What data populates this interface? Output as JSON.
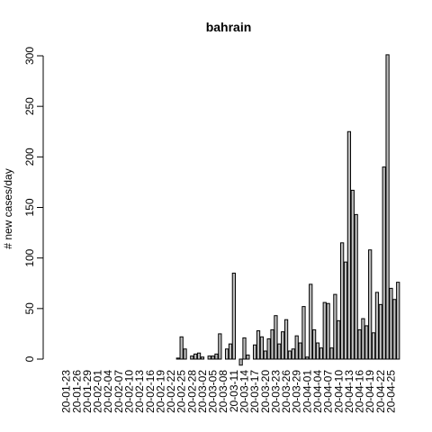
{
  "chart_data": {
    "type": "bar",
    "title": "bahrain",
    "xlabel": "",
    "ylabel": "# new cases/day",
    "ylim": [
      0,
      300
    ],
    "yticks": [
      0,
      50,
      100,
      150,
      200,
      250,
      300
    ],
    "xtick_labels": [
      "20-01-23",
      "20-01-26",
      "20-01-29",
      "20-02-01",
      "20-02-04",
      "20-02-07",
      "20-02-10",
      "20-02-13",
      "20-02-16",
      "20-02-19",
      "20-02-22",
      "20-02-25",
      "20-02-28",
      "20-03-02",
      "20-03-05",
      "20-03-08",
      "20-03-11",
      "20-03-14",
      "20-03-17",
      "20-03-20",
      "20-03-23",
      "20-03-26",
      "20-03-29",
      "20-04-01",
      "20-04-04",
      "20-04-07",
      "20-04-10",
      "20-04-13",
      "20-04-16",
      "20-04-19",
      "20-04-22",
      "20-04-25"
    ],
    "tick_every": 3,
    "categories": [
      "20-01-23",
      "20-01-24",
      "20-01-25",
      "20-01-26",
      "20-01-27",
      "20-01-28",
      "20-01-29",
      "20-01-30",
      "20-01-31",
      "20-02-01",
      "20-02-02",
      "20-02-03",
      "20-02-04",
      "20-02-05",
      "20-02-06",
      "20-02-07",
      "20-02-08",
      "20-02-09",
      "20-02-10",
      "20-02-11",
      "20-02-12",
      "20-02-13",
      "20-02-14",
      "20-02-15",
      "20-02-16",
      "20-02-17",
      "20-02-18",
      "20-02-19",
      "20-02-20",
      "20-02-21",
      "20-02-22",
      "20-02-23",
      "20-02-24",
      "20-02-25",
      "20-02-26",
      "20-02-27",
      "20-02-28",
      "20-02-29",
      "20-03-01",
      "20-03-02",
      "20-03-03",
      "20-03-04",
      "20-03-05",
      "20-03-06",
      "20-03-07",
      "20-03-08",
      "20-03-09",
      "20-03-10",
      "20-03-11",
      "20-03-12",
      "20-03-13",
      "20-03-14",
      "20-03-15",
      "20-03-16",
      "20-03-17",
      "20-03-18",
      "20-03-19",
      "20-03-20",
      "20-03-21",
      "20-03-22",
      "20-03-23",
      "20-03-24",
      "20-03-25",
      "20-03-26",
      "20-03-27",
      "20-03-28",
      "20-03-29",
      "20-03-30",
      "20-03-31",
      "20-04-01",
      "20-04-02",
      "20-04-03",
      "20-04-04",
      "20-04-05",
      "20-04-06",
      "20-04-07",
      "20-04-08",
      "20-04-09",
      "20-04-10",
      "20-04-11",
      "20-04-12",
      "20-04-13",
      "20-04-14",
      "20-04-15",
      "20-04-16",
      "20-04-17",
      "20-04-18",
      "20-04-19",
      "20-04-20",
      "20-04-21",
      "20-04-22",
      "20-04-23",
      "20-04-24",
      "20-04-25",
      "20-04-26",
      "20-04-27",
      "20-04-28"
    ],
    "values": [
      0,
      0,
      0,
      0,
      0,
      0,
      0,
      0,
      0,
      0,
      0,
      0,
      0,
      0,
      0,
      0,
      0,
      0,
      0,
      0,
      0,
      0,
      0,
      0,
      0,
      0,
      0,
      0,
      0,
      0,
      0,
      0,
      1,
      22,
      10,
      0,
      3,
      5,
      6,
      2,
      0,
      3,
      3,
      5,
      25,
      0,
      10,
      15,
      85,
      0,
      -6,
      21,
      4,
      0,
      14,
      28,
      22,
      8,
      20,
      29,
      43,
      15,
      27,
      39,
      8,
      10,
      23,
      16,
      52,
      2,
      74,
      29,
      16,
      11,
      56,
      55,
      11,
      64,
      38,
      115,
      96,
      225,
      167,
      143,
      29,
      40,
      33,
      108,
      26,
      66,
      54,
      190,
      301,
      70,
      59,
      76,
      0
    ],
    "bar_color": "#bebebe",
    "grid": false
  }
}
